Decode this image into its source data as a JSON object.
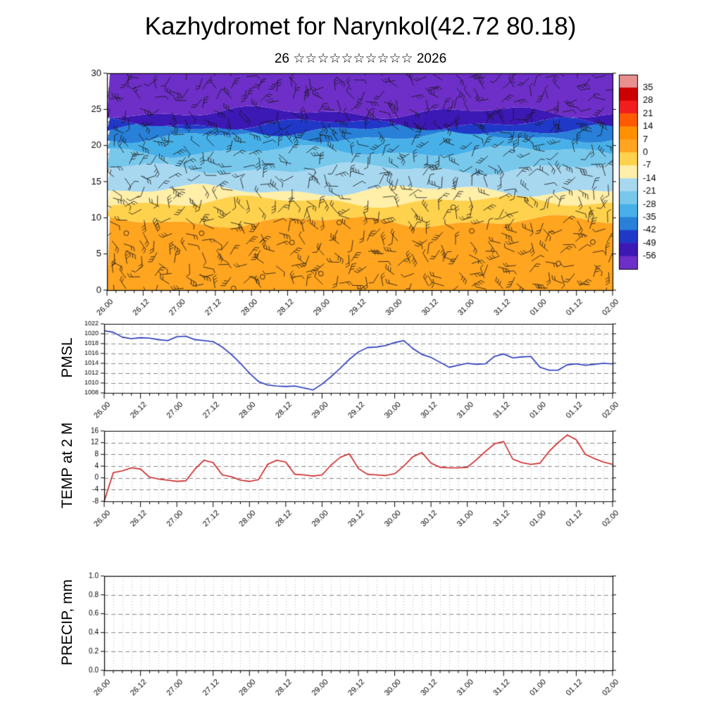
{
  "title": "Kazhydromet for Narynkol(42.72 80.18)",
  "subtitle": "26 ☆☆☆☆☆☆☆☆☆☆ 2026",
  "time_axis": {
    "labels": [
      "26.00",
      "26.12",
      "27.00",
      "27.12",
      "28.00",
      "28.12",
      "29.00",
      "29.12",
      "30.00",
      "30.12",
      "31.00",
      "31.12",
      "01.00",
      "01.12",
      "02.00"
    ],
    "major_step_hours": 12,
    "minor_step_hours": 3,
    "total_hours": 168
  },
  "chart_data": [
    {
      "type": "heatmap",
      "name": "cross_section",
      "label": "",
      "description": "time-height cross section of temperature with wind barbs overlay",
      "ylim": [
        0,
        30
      ],
      "yticks": [
        0,
        5,
        10,
        15,
        20,
        25,
        30
      ],
      "band_edges": [
        0,
        9.5,
        12.3,
        13.8,
        16.8,
        19.2,
        21.2,
        22.2,
        23.0,
        24.6,
        30
      ],
      "band_colors": [
        "#FFA520",
        "#FFD24D",
        "#FFEFA8",
        "#A8D8F0",
        "#78C8EC",
        "#48B0E8",
        "#2880D8",
        "#2038C8",
        "#3C18B4",
        "#6E2EC8"
      ],
      "band_temps": [
        "0..7",
        "-7..0",
        "-14..-7",
        "-21..-14",
        "-28..-21",
        "-35..-28",
        "-42..-35",
        "-49..-42",
        "-56..-49",
        "<-56"
      ],
      "overlay": "wind-barbs",
      "colorbar": {
        "labels": [
          "35",
          "28",
          "21",
          "14",
          "7",
          "0",
          "-7",
          "-14",
          "-21",
          "-28",
          "-35",
          "-42",
          "-49",
          "-56"
        ],
        "colors": [
          "#E89090",
          "#CC0000",
          "#F21D1D",
          "#FF5A00",
          "#FF9000",
          "#FFA520",
          "#FFD24D",
          "#FFEFA8",
          "#A8D8F0",
          "#78C8EC",
          "#48B0E8",
          "#2880D8",
          "#2038C8",
          "#3C18B4",
          "#6E2EC8"
        ]
      }
    },
    {
      "type": "line",
      "name": "pmsl",
      "label": "PMSL",
      "color": "#2233BB",
      "ylim": [
        1008,
        1022
      ],
      "yticks": [
        1008,
        1010,
        1012,
        1014,
        1016,
        1018,
        1020,
        1022
      ],
      "x_step_hours": 3,
      "values": [
        1020.6,
        1020.3,
        1019.3,
        1019.0,
        1019.2,
        1019.1,
        1018.8,
        1018.6,
        1019.4,
        1019.5,
        1018.8,
        1018.6,
        1018.4,
        1017.3,
        1015.8,
        1014.0,
        1012.0,
        1010.3,
        1009.6,
        1009.4,
        1009.3,
        1009.4,
        1009.0,
        1008.6,
        1009.8,
        1011.3,
        1013.0,
        1014.8,
        1016.3,
        1017.2,
        1017.3,
        1017.6,
        1018.2,
        1018.6,
        1017.0,
        1015.8,
        1015.2,
        1014.2,
        1013.2,
        1013.6,
        1014.0,
        1013.8,
        1013.9,
        1015.4,
        1015.9,
        1015.1,
        1015.3,
        1015.4,
        1013.2,
        1012.6,
        1012.6,
        1013.7,
        1013.9,
        1013.6,
        1013.8,
        1014.0,
        1013.9
      ]
    },
    {
      "type": "line",
      "name": "temp2m",
      "label": "TEMP at 2 M",
      "color": "#CC2222",
      "ylim": [
        -8,
        16
      ],
      "yticks": [
        -8,
        -4,
        0,
        4,
        8,
        12,
        16
      ],
      "x_step_hours": 3,
      "values": [
        -8.0,
        1.8,
        2.4,
        3.4,
        3.0,
        0.2,
        -0.4,
        -0.8,
        -1.2,
        -1.0,
        3.0,
        6.0,
        5.2,
        1.0,
        0.4,
        -0.8,
        -1.2,
        -0.6,
        4.6,
        6.0,
        5.4,
        1.2,
        1.0,
        0.6,
        1.0,
        4.4,
        7.0,
        8.2,
        3.2,
        1.2,
        1.0,
        0.8,
        1.4,
        4.0,
        7.2,
        8.6,
        5.0,
        3.6,
        3.4,
        3.4,
        3.6,
        6.2,
        9.0,
        11.6,
        12.4,
        6.4,
        5.2,
        4.6,
        5.0,
        9.0,
        12.0,
        14.6,
        13.0,
        8.0,
        6.6,
        5.4,
        4.6
      ]
    },
    {
      "type": "line",
      "name": "precip",
      "label": "PRECIP, mm",
      "color": "#00AA00",
      "ylim": [
        0,
        1
      ],
      "yticks": [
        0,
        0.2,
        0.4,
        0.6,
        0.8,
        1.0
      ],
      "ytick_labels": [
        "0.0",
        "0.2",
        "0.4",
        "0.6",
        "0.8",
        "1.0"
      ],
      "x_step_hours": 3,
      "values": []
    }
  ]
}
